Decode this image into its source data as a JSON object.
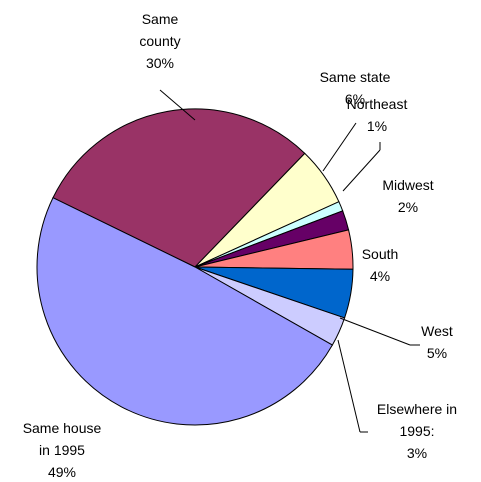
{
  "chart_data": {
    "type": "pie",
    "categories": [
      "Same county",
      "Same state",
      "Northeast",
      "Midwest",
      "South",
      "West",
      "Elsewhere in 1995:",
      "Same house in 1995"
    ],
    "values": [
      30,
      6,
      1,
      2,
      4,
      5,
      3,
      49
    ],
    "value_labels": [
      "30%",
      "6%",
      "1%",
      "2%",
      "4%",
      "5%",
      "3%",
      "49%"
    ],
    "colors": [
      "#993366",
      "#ffffcc",
      "#ccffff",
      "#660066",
      "#ff8080",
      "#0066cc",
      "#ccccff",
      "#9999ff"
    ]
  }
}
